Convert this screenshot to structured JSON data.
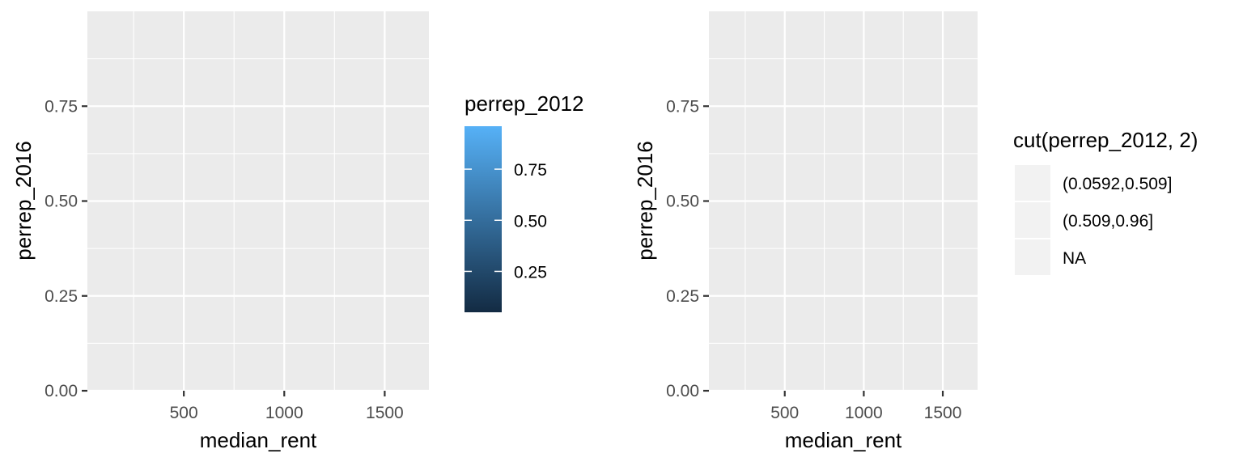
{
  "chart_data": [
    {
      "type": "scatter",
      "panel": "left",
      "xlabel": "median_rent",
      "ylabel": "perrep_2016",
      "xlim": [
        20,
        1720
      ],
      "ylim": [
        0,
        1.0
      ],
      "x_ticks": [
        500,
        1000,
        1500
      ],
      "x_tick_labels": [
        "500",
        "1000",
        "1500"
      ],
      "y_ticks": [
        0,
        0.25,
        0.5,
        0.75
      ],
      "y_tick_labels": [
        "0.00",
        "0.25",
        "0.50",
        "0.75"
      ],
      "grid": true,
      "series": [],
      "legend": {
        "kind": "colorbar",
        "title": "perrep_2012",
        "placement": "right",
        "range": [
          0.05,
          0.96
        ],
        "ticks": [
          0.25,
          0.5,
          0.75
        ],
        "tick_labels": [
          "0.25",
          "0.50",
          "0.75"
        ],
        "color_low": "#132B43",
        "color_high": "#56B1F7"
      }
    },
    {
      "type": "scatter",
      "panel": "right",
      "xlabel": "median_rent",
      "ylabel": "perrep_2016",
      "xlim": [
        20,
        1720
      ],
      "ylim": [
        0,
        1.0
      ],
      "x_ticks": [
        500,
        1000,
        1500
      ],
      "x_tick_labels": [
        "500",
        "1000",
        "1500"
      ],
      "y_ticks": [
        0,
        0.25,
        0.5,
        0.75
      ],
      "y_tick_labels": [
        "0.00",
        "0.25",
        "0.50",
        "0.75"
      ],
      "grid": true,
      "series": [],
      "legend": {
        "kind": "discrete",
        "title": "cut(perrep_2012, 2)",
        "placement": "right",
        "entries": [
          "(0.0592,0.509]",
          "(0.509,0.96]",
          "NA"
        ],
        "key_color": "#f2f2f2"
      }
    }
  ],
  "colors": {
    "panel_background": "#ebebeb",
    "grid_line": "#ffffff",
    "tick_text": "#4d4d4d",
    "tick_mark": "#333333"
  }
}
